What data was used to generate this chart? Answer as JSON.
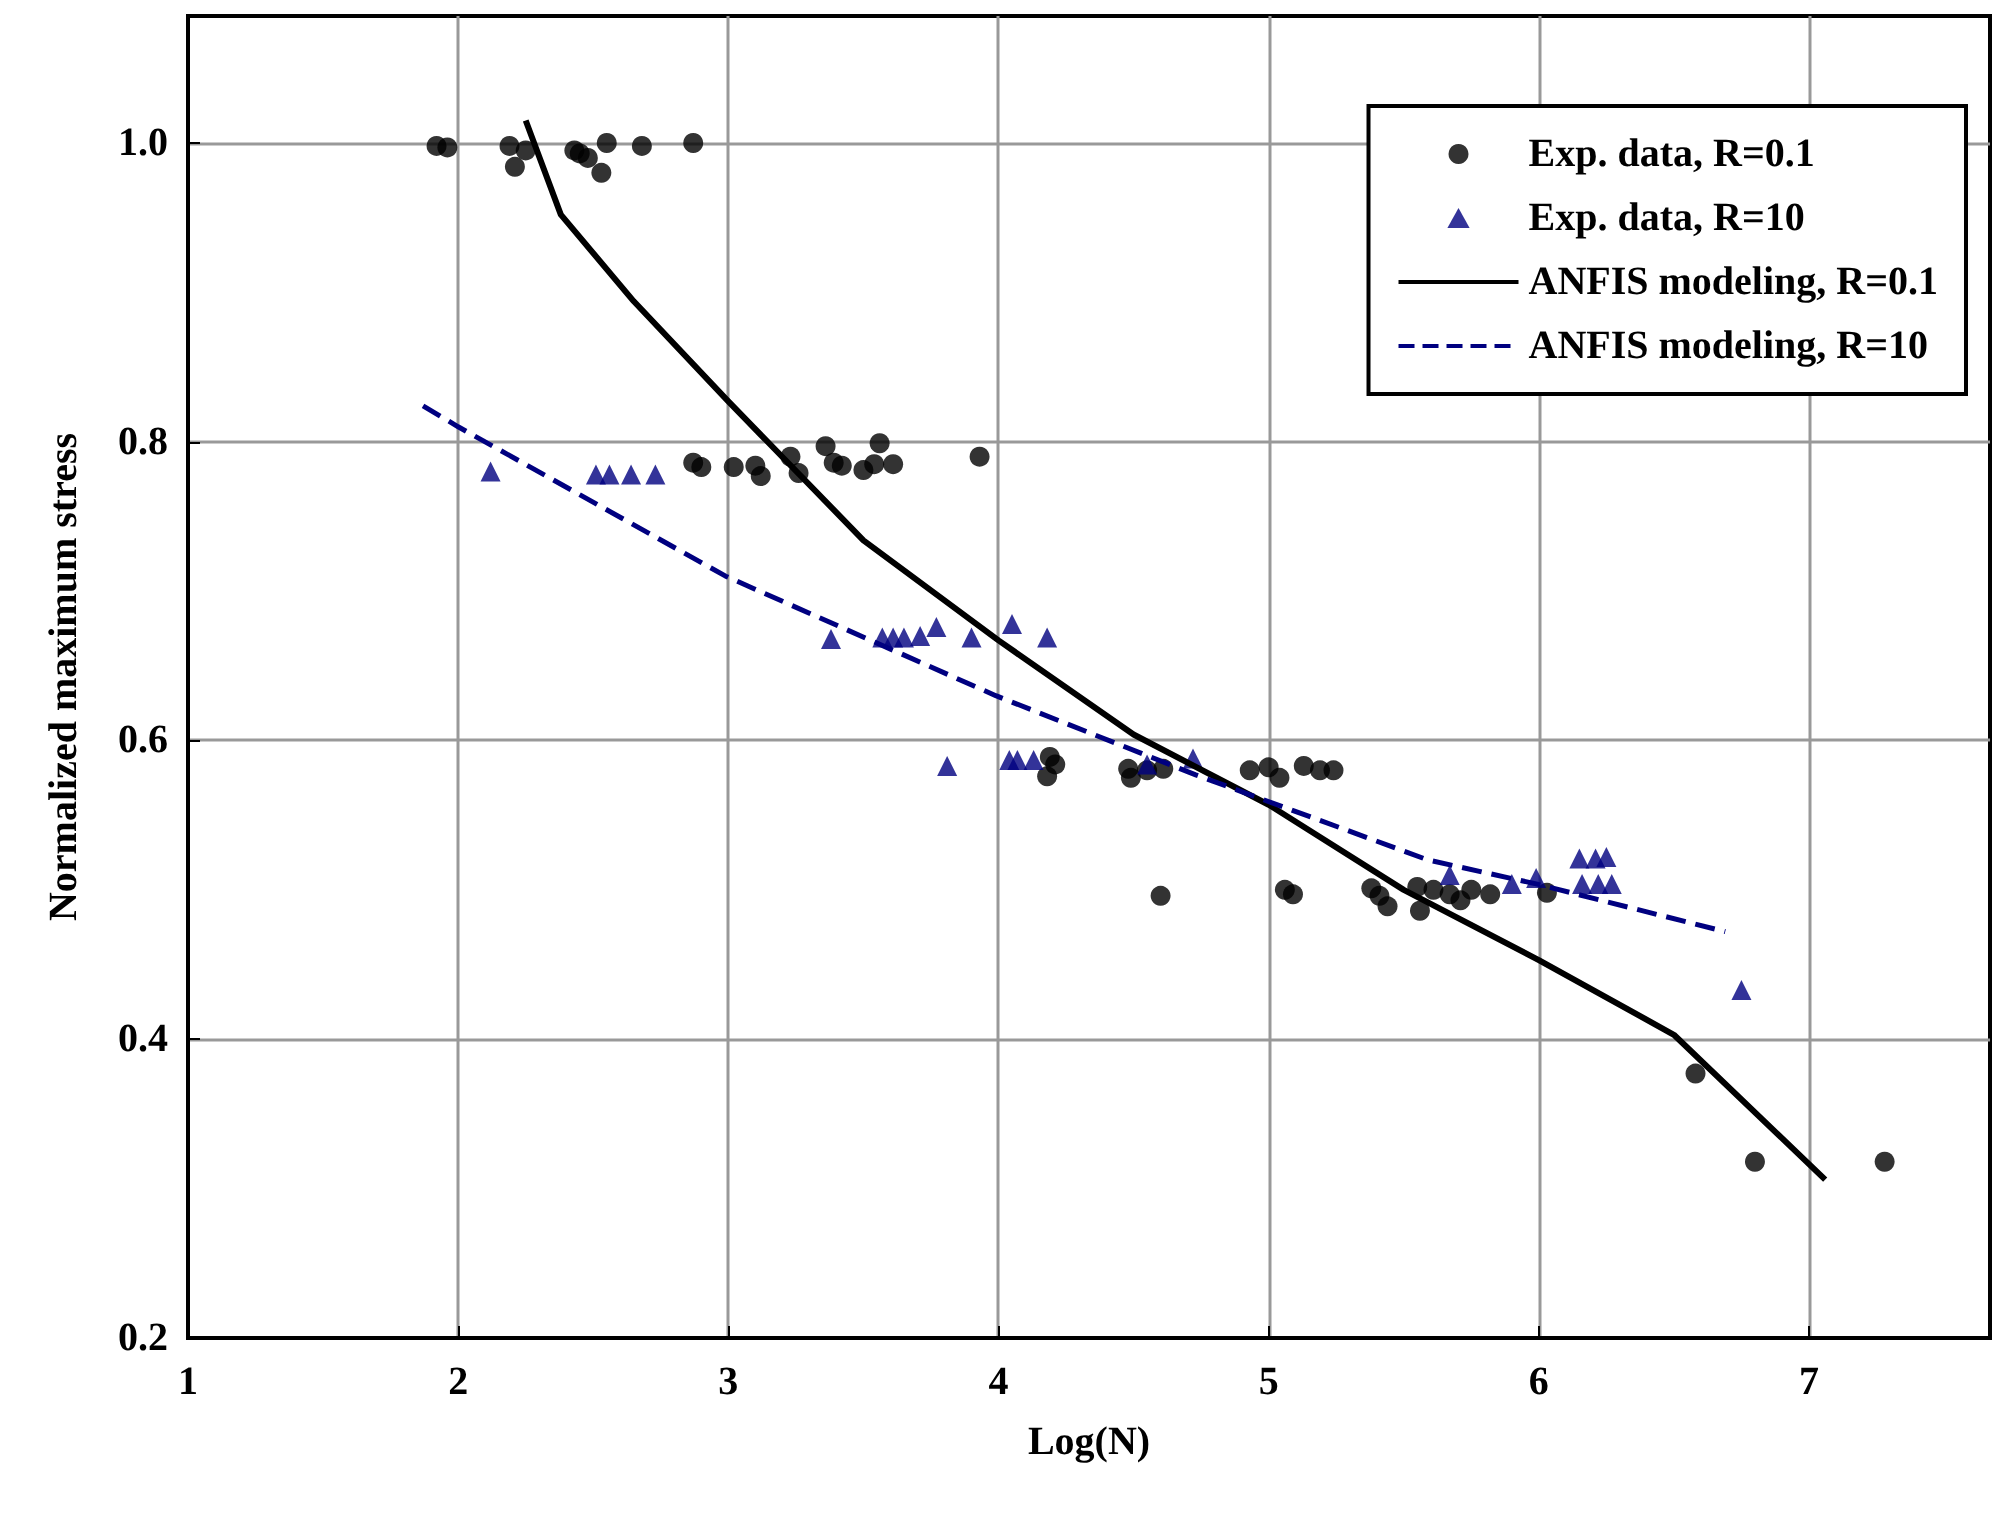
{
  "chart_data": {
    "type": "scatter",
    "xlabel": "Log(N)",
    "ylabel": "Normalized maximum stress",
    "xlim": [
      1,
      7.67
    ],
    "ylim": [
      0.2,
      1.085
    ],
    "xticks": [
      1,
      2,
      3,
      4,
      5,
      6,
      7
    ],
    "yticks": [
      0.2,
      0.4,
      0.6,
      0.8,
      {
        "value": 1,
        "label": "1.0"
      }
    ],
    "grid": true,
    "legend": "top right",
    "series": [
      {
        "name": "Exp. data, R=0.1",
        "marker": "circle",
        "color": "#000000",
        "x": [
          1.92,
          1.96,
          2.19,
          2.21,
          2.25,
          2.43,
          2.45,
          2.48,
          2.53,
          2.55,
          2.68,
          2.87,
          2.87,
          2.9,
          3.02,
          3.1,
          3.12,
          3.23,
          3.26,
          3.36,
          3.39,
          3.42,
          3.5,
          3.54,
          3.56,
          3.61,
          3.93,
          4.18,
          4.19,
          4.21,
          4.48,
          4.49,
          4.55,
          4.61,
          4.93,
          5.0,
          5.04,
          5.13,
          5.19,
          5.24,
          4.6,
          5.06,
          5.09,
          5.38,
          5.41,
          5.44,
          5.55,
          5.56,
          5.61,
          5.67,
          5.71,
          5.75,
          5.82,
          6.03,
          6.58,
          6.8,
          7.28
        ],
        "values": [
          0.998,
          0.997,
          0.998,
          0.984,
          0.995,
          0.995,
          0.993,
          0.99,
          0.98,
          1.0,
          0.998,
          1.0,
          0.786,
          0.783,
          0.783,
          0.784,
          0.777,
          0.79,
          0.779,
          0.797,
          0.786,
          0.784,
          0.781,
          0.785,
          0.799,
          0.785,
          0.79,
          0.576,
          0.589,
          0.584,
          0.581,
          0.575,
          0.58,
          0.581,
          0.58,
          0.582,
          0.575,
          0.583,
          0.58,
          0.58,
          0.496,
          0.5,
          0.497,
          0.501,
          0.496,
          0.489,
          0.502,
          0.486,
          0.5,
          0.497,
          0.493,
          0.5,
          0.497,
          0.498,
          0.377,
          0.318,
          0.318
        ]
      },
      {
        "name": "Exp. data, R=10",
        "marker": "triangle",
        "color": "#000080",
        "x": [
          2.12,
          2.51,
          2.56,
          2.64,
          2.73,
          3.38,
          3.57,
          3.61,
          3.65,
          3.71,
          3.77,
          3.9,
          4.05,
          4.18,
          3.81,
          4.04,
          4.07,
          4.13,
          4.55,
          4.72,
          5.67,
          5.9,
          5.99,
          6.15,
          6.21,
          6.25,
          6.16,
          6.22,
          6.27,
          6.75
        ],
        "values": [
          0.78,
          0.778,
          0.778,
          0.778,
          0.778,
          0.668,
          0.669,
          0.669,
          0.669,
          0.67,
          0.676,
          0.669,
          0.678,
          0.669,
          0.583,
          0.587,
          0.587,
          0.587,
          0.584,
          0.588,
          0.51,
          0.504,
          0.508,
          0.521,
          0.521,
          0.522,
          0.504,
          0.504,
          0.504,
          0.433
        ]
      },
      {
        "name": "ANFIS modeling, R=0.1",
        "type": "line",
        "marker": "none",
        "line_style": "solid",
        "color": "#000000",
        "x": [
          2.25,
          2.38,
          2.65,
          3.0,
          3.5,
          4.0,
          4.5,
          5.0,
          5.5,
          6.0,
          6.5,
          7.06
        ],
        "values": [
          1.015,
          0.952,
          0.894,
          0.827,
          0.734,
          0.667,
          0.604,
          0.557,
          0.5,
          0.453,
          0.403,
          0.306
        ]
      },
      {
        "name": "ANFIS modeling, R=10",
        "type": "line",
        "marker": "none",
        "line_style": "dashed",
        "color": "#000080",
        "x": [
          1.87,
          2.0,
          2.99,
          3.99,
          4.73,
          5.59,
          5.99,
          6.69
        ],
        "values": [
          0.824,
          0.81,
          0.71,
          0.63,
          0.577,
          0.52,
          0.504,
          0.472
        ]
      }
    ]
  }
}
